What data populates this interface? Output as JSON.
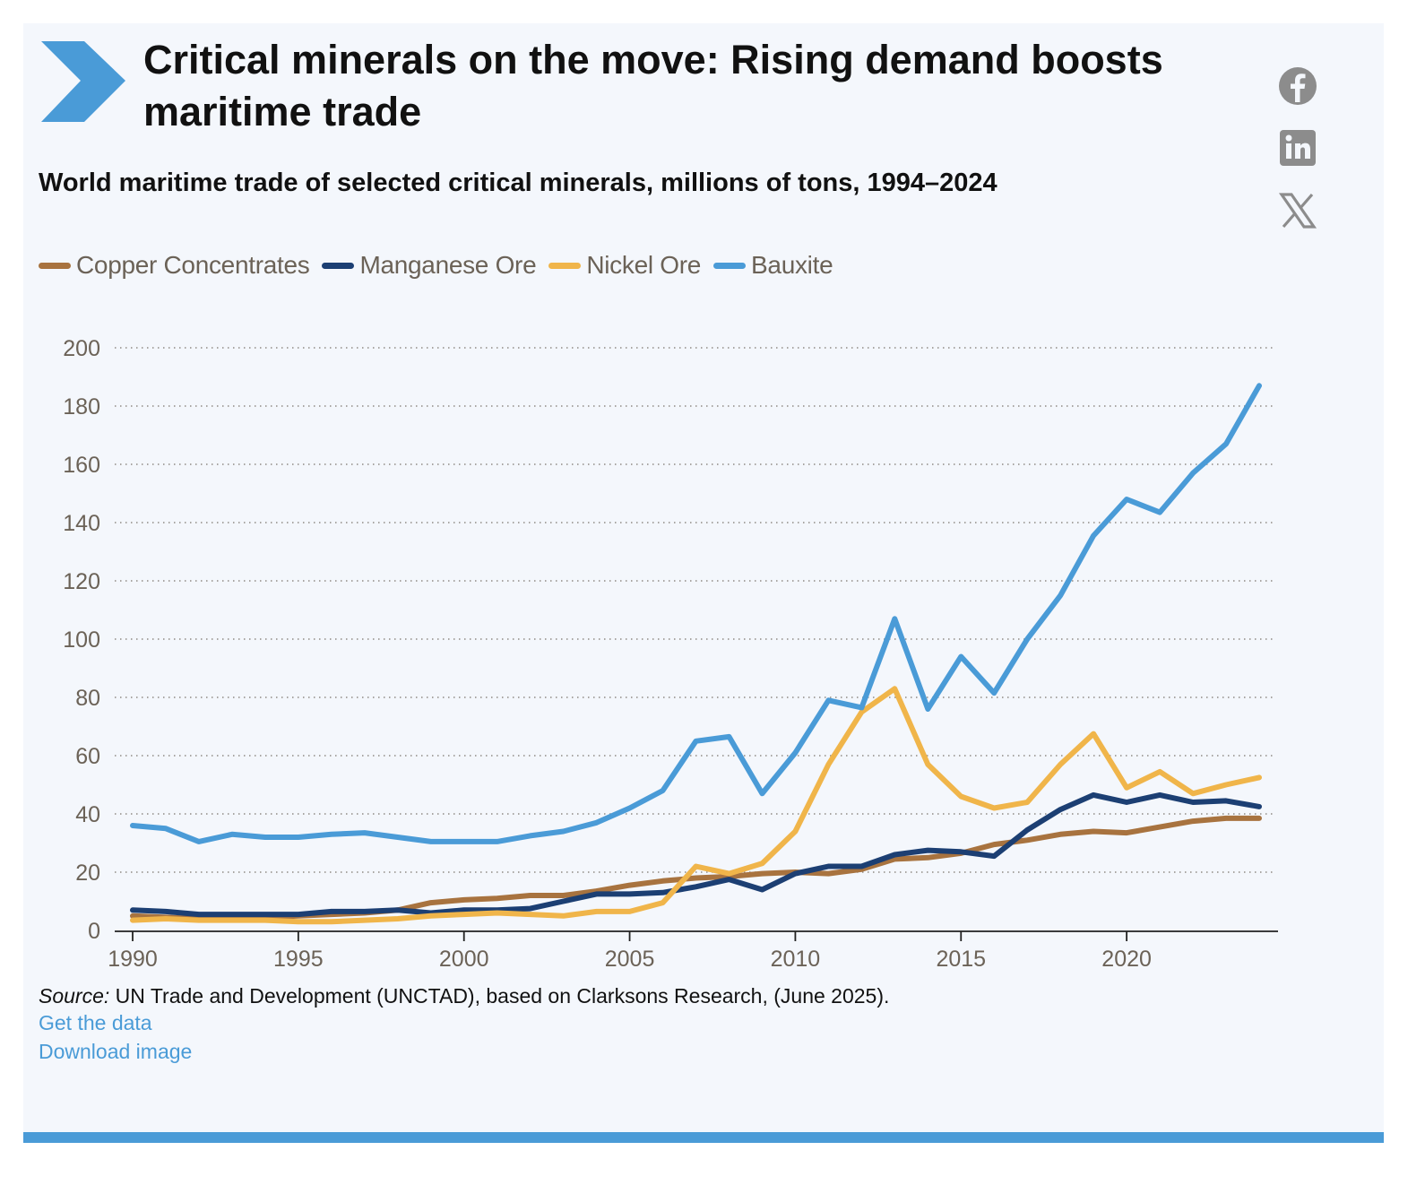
{
  "header": {
    "title": "Critical minerals on the move: Rising demand boosts maritime trade",
    "subtitle": "World maritime trade of selected critical minerals, millions of tons, 1994–2024"
  },
  "social": [
    {
      "name": "facebook-icon"
    },
    {
      "name": "linkedin-icon"
    },
    {
      "name": "x-icon"
    }
  ],
  "colors": {
    "accent": "#4a9bd7",
    "copper": "#a8733f",
    "manganese": "#1c3f73",
    "nickel": "#f0b54a",
    "bauxite": "#4a9bd7"
  },
  "chart_data": {
    "type": "line",
    "title": "World maritime trade of selected critical minerals, millions of tons, 1994–2024",
    "xlabel": "",
    "ylabel": "",
    "xlim": [
      1990,
      2025
    ],
    "ylim": [
      0,
      200
    ],
    "x_ticks": [
      1990,
      1995,
      2000,
      2005,
      2010,
      2015,
      2020
    ],
    "y_ticks": [
      0,
      20,
      40,
      60,
      80,
      100,
      120,
      140,
      160,
      180,
      200
    ],
    "grid": "horizontal-dotted",
    "legend": "top-left",
    "x": [
      1990,
      1991,
      1992,
      1993,
      1994,
      1995,
      1996,
      1997,
      1998,
      1999,
      2000,
      2001,
      2002,
      2003,
      2004,
      2005,
      2006,
      2007,
      2008,
      2009,
      2010,
      2011,
      2012,
      2013,
      2014,
      2015,
      2016,
      2017,
      2018,
      2019,
      2020,
      2021,
      2022,
      2023,
      2024
    ],
    "series": [
      {
        "name": "Copper Concentrates",
        "color": "#a8733f",
        "values": [
          5,
          4.5,
          4,
          4,
          4.5,
          5,
          5.5,
          6,
          7,
          9.5,
          10.5,
          11,
          12,
          12,
          13.5,
          15.5,
          17,
          18,
          18.5,
          19.5,
          20,
          19.5,
          21,
          24.5,
          25,
          26.5,
          29.5,
          31,
          33,
          34,
          33.5,
          35.5,
          37.5,
          38.5,
          38.5
        ]
      },
      {
        "name": "Manganese Ore",
        "color": "#1c3f73",
        "values": [
          7,
          6.5,
          5.5,
          5.5,
          5.5,
          5.5,
          6.5,
          6.5,
          7,
          6,
          7,
          7,
          7.5,
          10,
          12.5,
          12.5,
          13,
          15,
          17.5,
          14,
          19.5,
          22,
          22,
          26,
          27.5,
          27,
          25.5,
          34.5,
          41.5,
          46.5,
          44,
          46.5,
          44,
          44.5,
          42.5
        ]
      },
      {
        "name": "Nickel Ore",
        "color": "#f0b54a",
        "values": [
          3.5,
          4,
          3.5,
          3.5,
          3.5,
          3,
          3,
          3.5,
          4,
          5,
          5.5,
          6,
          5.5,
          5,
          6.5,
          6.5,
          9.5,
          22,
          19.5,
          23,
          34,
          57,
          75,
          83,
          57,
          46,
          42,
          44,
          57,
          67.5,
          49,
          54.5,
          47,
          50,
          52.5
        ]
      },
      {
        "name": "Bauxite",
        "color": "#4a9bd7",
        "values": [
          36,
          35,
          30.5,
          33,
          32,
          32,
          33,
          33.5,
          32,
          30.5,
          30.5,
          30.5,
          32.5,
          34,
          37,
          42,
          48,
          65,
          66.5,
          47,
          61,
          79,
          76.5,
          107,
          76,
          94,
          81.5,
          100,
          115,
          135.5,
          148,
          143.5,
          157,
          167,
          187
        ]
      }
    ]
  },
  "footer": {
    "source_label": "Source:",
    "source_text": "UN Trade and Development (UNCTAD), based on Clarksons Research, (June 2025).",
    "get_data": "Get the data",
    "download_image": "Download image"
  }
}
